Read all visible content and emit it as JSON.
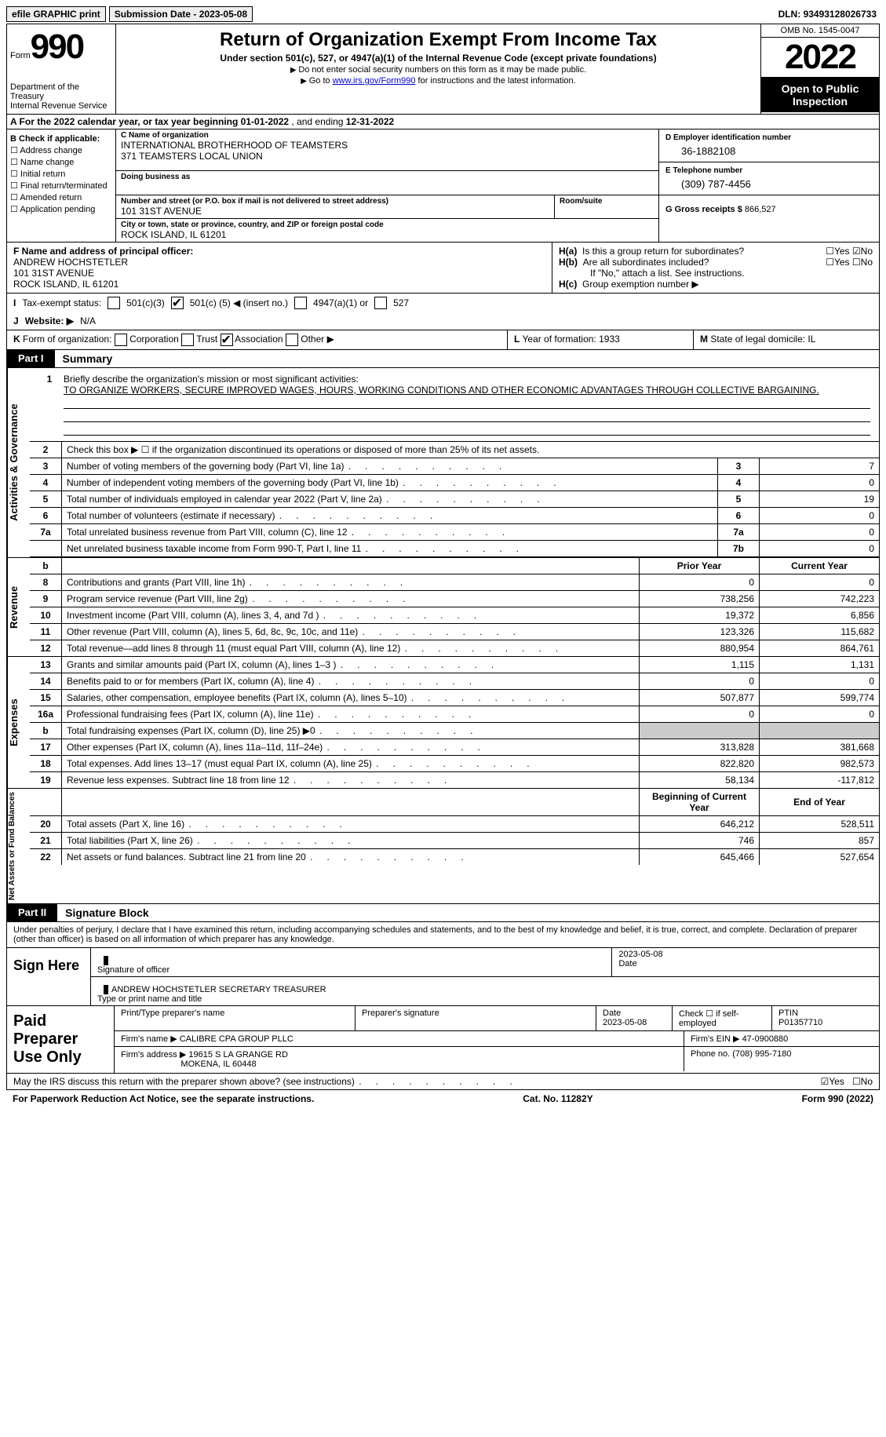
{
  "top": {
    "efile": "efile GRAPHIC print",
    "submission_label": "Submission Date - ",
    "submission_date": "2023-05-08",
    "dln_label": "DLN: ",
    "dln": "93493128026733"
  },
  "header": {
    "form_word": "Form",
    "form_num": "990",
    "dept": "Department of the Treasury",
    "irs": "Internal Revenue Service",
    "title": "Return of Organization Exempt From Income Tax",
    "sub1": "Under section 501(c), 527, or 4947(a)(1) of the Internal Revenue Code (except private foundations)",
    "sub2": "Do not enter social security numbers on this form as it may be made public.",
    "sub3_pre": "Go to ",
    "sub3_link": "www.irs.gov/Form990",
    "sub3_post": " for instructions and the latest information.",
    "omb": "OMB No. 1545-0047",
    "year": "2022",
    "inspection": "Open to Public Inspection"
  },
  "row_a": {
    "text_pre": "A For the 2022 calendar year, or tax year beginning ",
    "begin": "01-01-2022",
    "mid": " , and ending ",
    "end": "12-31-2022"
  },
  "col_b": {
    "header": "B Check if applicable:",
    "items": [
      "Address change",
      "Name change",
      "Initial return",
      "Final return/terminated",
      "Amended return",
      "Application pending"
    ]
  },
  "col_c": {
    "name_lbl": "C Name of organization",
    "name1": "INTERNATIONAL BROTHERHOOD OF TEAMSTERS",
    "name2": "371 TEAMSTERS LOCAL UNION",
    "dba_lbl": "Doing business as",
    "addr_lbl": "Number and street (or P.O. box if mail is not delivered to street address)",
    "room_lbl": "Room/suite",
    "addr": "101 31ST AVENUE",
    "city_lbl": "City or town, state or province, country, and ZIP or foreign postal code",
    "city": "ROCK ISLAND, IL  61201"
  },
  "col_d": {
    "ein_lbl": "D Employer identification number",
    "ein": "36-1882108",
    "tel_lbl": "E Telephone number",
    "tel": "(309) 787-4456",
    "gross_lbl": "G Gross receipts $ ",
    "gross": "866,527"
  },
  "f": {
    "lbl": "F Name and address of principal officer:",
    "name": "ANDREW HOCHSTETLER",
    "addr1": "101 31ST AVENUE",
    "addr2": "ROCK ISLAND, IL  61201"
  },
  "h": {
    "a_lbl": "H(a)",
    "a_txt": "Is this a group return for subordinates?",
    "a_yes": "Yes",
    "a_no": "No",
    "b_lbl": "H(b)",
    "b_txt": "Are all subordinates included?",
    "b_note": "If \"No,\" attach a list. See instructions.",
    "c_lbl": "H(c)",
    "c_txt": "Group exemption number ▶"
  },
  "row_i": {
    "lbl": "I",
    "txt": "Tax-exempt status:",
    "o1": "501(c)(3)",
    "o2_pre": "501(c) (",
    "o2_val": "5",
    "o2_post": ") ◀ (insert no.)",
    "o3": "4947(a)(1) or",
    "o4": "527"
  },
  "row_j": {
    "lbl": "J",
    "txt": "Website: ▶",
    "val": "N/A"
  },
  "row_k": {
    "lbl": "K",
    "txt": "Form of organization:",
    "o1": "Corporation",
    "o2": "Trust",
    "o3": "Association",
    "o4": "Other ▶"
  },
  "row_l": {
    "lbl": "L",
    "txt": "Year of formation: ",
    "val": "1933"
  },
  "row_m": {
    "lbl": "M",
    "txt": "State of legal domicile: ",
    "val": "IL"
  },
  "part1": {
    "tab": "Part I",
    "title": "Summary"
  },
  "summary": {
    "vtab1": "Activities & Governance",
    "line1_lbl": "Briefly describe the organization's mission or most significant activities:",
    "line1_val": "TO ORGANIZE WORKERS, SECURE IMPROVED WAGES, HOURS, WORKING CONDITIONS AND OTHER ECONOMIC ADVANTAGES THROUGH COLLECTIVE BARGAINING.",
    "line2": "Check this box ▶ ☐  if the organization discontinued its operations or disposed of more than 25% of its net assets.",
    "rows_gov": [
      {
        "n": "3",
        "t": "Number of voting members of the governing body (Part VI, line 1a)",
        "i": "3",
        "v": "7"
      },
      {
        "n": "4",
        "t": "Number of independent voting members of the governing body (Part VI, line 1b)",
        "i": "4",
        "v": "0"
      },
      {
        "n": "5",
        "t": "Total number of individuals employed in calendar year 2022 (Part V, line 2a)",
        "i": "5",
        "v": "19"
      },
      {
        "n": "6",
        "t": "Total number of volunteers (estimate if necessary)",
        "i": "6",
        "v": "0"
      },
      {
        "n": "7a",
        "t": "Total unrelated business revenue from Part VIII, column (C), line 12",
        "i": "7a",
        "v": "0"
      },
      {
        "n": "",
        "t": "Net unrelated business taxable income from Form 990-T, Part I, line 11",
        "i": "7b",
        "v": "0"
      }
    ],
    "header_prior": "Prior Year",
    "header_current": "Current Year",
    "vtab2": "Revenue",
    "rows_rev": [
      {
        "n": "8",
        "t": "Contributions and grants (Part VIII, line 1h)",
        "p": "0",
        "c": "0"
      },
      {
        "n": "9",
        "t": "Program service revenue (Part VIII, line 2g)",
        "p": "738,256",
        "c": "742,223"
      },
      {
        "n": "10",
        "t": "Investment income (Part VIII, column (A), lines 3, 4, and 7d )",
        "p": "19,372",
        "c": "6,856"
      },
      {
        "n": "11",
        "t": "Other revenue (Part VIII, column (A), lines 5, 6d, 8c, 9c, 10c, and 11e)",
        "p": "123,326",
        "c": "115,682"
      },
      {
        "n": "12",
        "t": "Total revenue—add lines 8 through 11 (must equal Part VIII, column (A), line 12)",
        "p": "880,954",
        "c": "864,761"
      }
    ],
    "vtab3": "Expenses",
    "rows_exp": [
      {
        "n": "13",
        "t": "Grants and similar amounts paid (Part IX, column (A), lines 1–3 )",
        "p": "1,115",
        "c": "1,131"
      },
      {
        "n": "14",
        "t": "Benefits paid to or for members (Part IX, column (A), line 4)",
        "p": "0",
        "c": "0"
      },
      {
        "n": "15",
        "t": "Salaries, other compensation, employee benefits (Part IX, column (A), lines 5–10)",
        "p": "507,877",
        "c": "599,774"
      },
      {
        "n": "16a",
        "t": "Professional fundraising fees (Part IX, column (A), line 11e)",
        "p": "0",
        "c": "0"
      },
      {
        "n": "b",
        "t": "Total fundraising expenses (Part IX, column (D), line 25) ▶0",
        "p": "shade",
        "c": "shade"
      },
      {
        "n": "17",
        "t": "Other expenses (Part IX, column (A), lines 11a–11d, 11f–24e)",
        "p": "313,828",
        "c": "381,668"
      },
      {
        "n": "18",
        "t": "Total expenses. Add lines 13–17 (must equal Part IX, column (A), line 25)",
        "p": "822,820",
        "c": "982,573"
      },
      {
        "n": "19",
        "t": "Revenue less expenses. Subtract line 18 from line 12",
        "p": "58,134",
        "c": "-117,812"
      }
    ],
    "header_begin": "Beginning of Current Year",
    "header_end": "End of Year",
    "vtab4": "Net Assets or Fund Balances",
    "rows_net": [
      {
        "n": "20",
        "t": "Total assets (Part X, line 16)",
        "p": "646,212",
        "c": "528,511"
      },
      {
        "n": "21",
        "t": "Total liabilities (Part X, line 26)",
        "p": "746",
        "c": "857"
      },
      {
        "n": "22",
        "t": "Net assets or fund balances. Subtract line 21 from line 20",
        "p": "645,466",
        "c": "527,654"
      }
    ]
  },
  "part2": {
    "tab": "Part II",
    "title": "Signature Block"
  },
  "sig": {
    "decl": "Under penalties of perjury, I declare that I have examined this return, including accompanying schedules and statements, and to the best of my knowledge and belief, it is true, correct, and complete. Declaration of preparer (other than officer) is based on all information of which preparer has any knowledge.",
    "sign_here": "Sign Here",
    "sig_officer": "Signature of officer",
    "date": "2023-05-08",
    "date_lbl": "Date",
    "name": "ANDREW HOCHSTETLER  SECRETARY TREASURER",
    "name_lbl": "Type or print name and title"
  },
  "paid": {
    "title": "Paid Preparer Use Only",
    "prep_name_lbl": "Print/Type preparer's name",
    "prep_sig_lbl": "Preparer's signature",
    "prep_date_lbl": "Date",
    "prep_date": "2023-05-08",
    "self_emp": "Check ☐ if self-employed",
    "ptin_lbl": "PTIN",
    "ptin": "P01357710",
    "firm_name_lbl": "Firm's name    ▶ ",
    "firm_name": "CALIBRE CPA GROUP PLLC",
    "firm_ein_lbl": "Firm's EIN ▶ ",
    "firm_ein": "47-0900880",
    "firm_addr_lbl": "Firm's address ▶ ",
    "firm_addr1": "19615 S LA GRANGE RD",
    "firm_addr2": "MOKENA, IL  60448",
    "phone_lbl": "Phone no. ",
    "phone": "(708) 995-7180"
  },
  "footer": {
    "discuss": "May the IRS discuss this return with the preparer shown above? (see instructions)",
    "yes": "Yes",
    "no": "No",
    "paperwork": "For Paperwork Reduction Act Notice, see the separate instructions.",
    "cat": "Cat. No. 11282Y",
    "form": "Form 990 (2022)"
  }
}
